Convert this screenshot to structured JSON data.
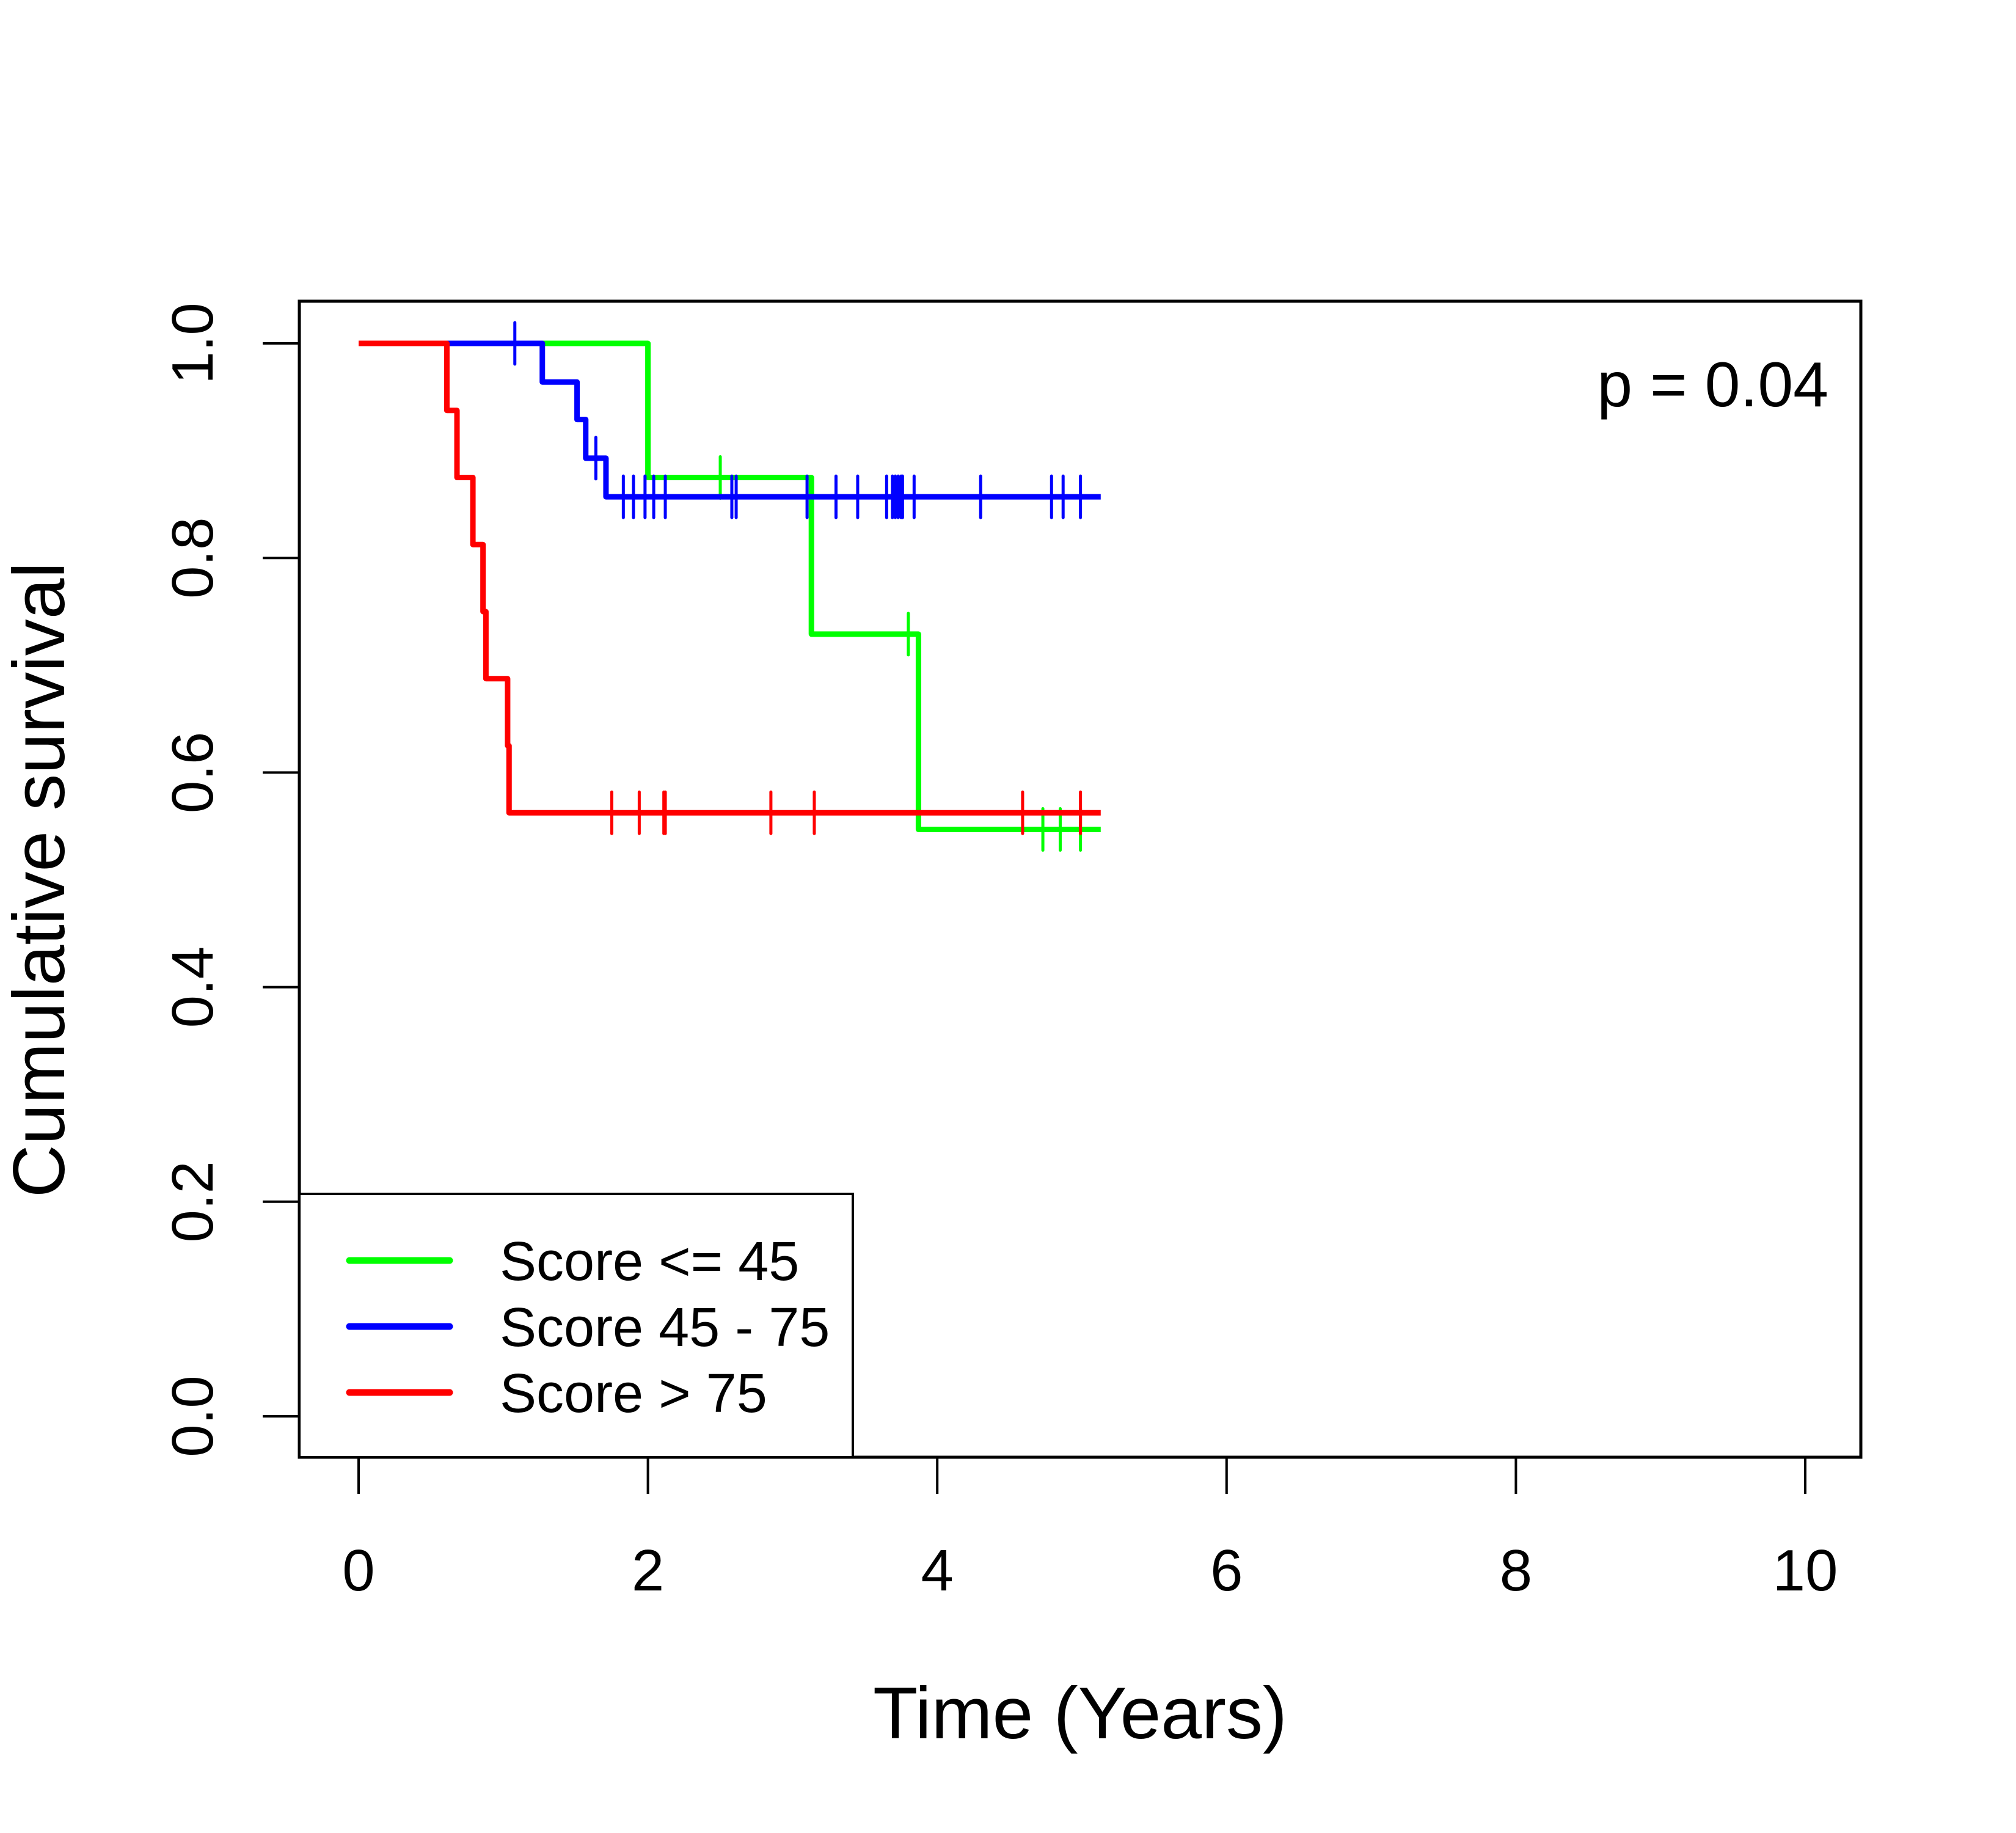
{
  "chart_data": {
    "type": "line",
    "subtype": "kaplan-meier",
    "title": "",
    "xlabel": "Time (Years)",
    "ylabel": "Cumulative survival",
    "xlim": [
      0,
      10
    ],
    "ylim": [
      0,
      1
    ],
    "xticks": [
      0,
      2,
      4,
      6,
      8,
      10
    ],
    "xtick_labels": [
      "0",
      "2",
      "4",
      "6",
      "8",
      "10"
    ],
    "yticks": [
      0,
      0.2,
      0.4,
      0.6,
      0.8,
      1.0
    ],
    "ytick_labels": [
      "0.0",
      "0.2",
      "0.4",
      "0.6",
      "0.8",
      "1.0"
    ],
    "grid": false,
    "legend_position": "bottom-left",
    "annotation": "p = 0.04",
    "series": [
      {
        "name": "Score <= 45",
        "color": "#00ff00",
        "steps": [
          {
            "t": 0,
            "s": 1.0
          },
          {
            "t": 2.0,
            "s": 0.875
          },
          {
            "t": 3.13,
            "s": 0.729
          },
          {
            "t": 3.87,
            "s": 0.547
          }
        ],
        "end_time": 5.13,
        "censored": [
          2.5,
          3.8,
          4.73,
          4.85,
          4.99
        ]
      },
      {
        "name": "Score 45 - 75",
        "color": "#0000ff",
        "steps": [
          {
            "t": 0,
            "s": 1.0
          },
          {
            "t": 1.27,
            "s": 0.964
          },
          {
            "t": 1.51,
            "s": 0.929
          },
          {
            "t": 1.57,
            "s": 0.893
          },
          {
            "t": 1.71,
            "s": 0.857
          }
        ],
        "end_time": 5.13,
        "censored": [
          1.08,
          1.64,
          1.83,
          1.9,
          1.98,
          2.04,
          2.12,
          2.58,
          2.61,
          3.1,
          3.3,
          3.45,
          3.65,
          3.69,
          3.71,
          3.73,
          3.75,
          3.76,
          3.84,
          4.3,
          4.79,
          4.87,
          4.99
        ]
      },
      {
        "name": "Score > 75",
        "color": "#ff0000",
        "steps": [
          {
            "t": 0,
            "s": 1.0
          },
          {
            "t": 0.61,
            "s": 0.9375
          },
          {
            "t": 0.68,
            "s": 0.875
          },
          {
            "t": 0.79,
            "s": 0.8125
          },
          {
            "t": 0.86,
            "s": 0.75
          },
          {
            "t": 0.88,
            "s": 0.6875
          },
          {
            "t": 1.03,
            "s": 0.625
          },
          {
            "t": 1.04,
            "s": 0.5625
          }
        ],
        "end_time": 5.13,
        "censored": [
          1.75,
          1.94,
          2.11,
          2.12,
          2.85,
          3.15,
          4.59,
          4.99
        ]
      }
    ]
  }
}
